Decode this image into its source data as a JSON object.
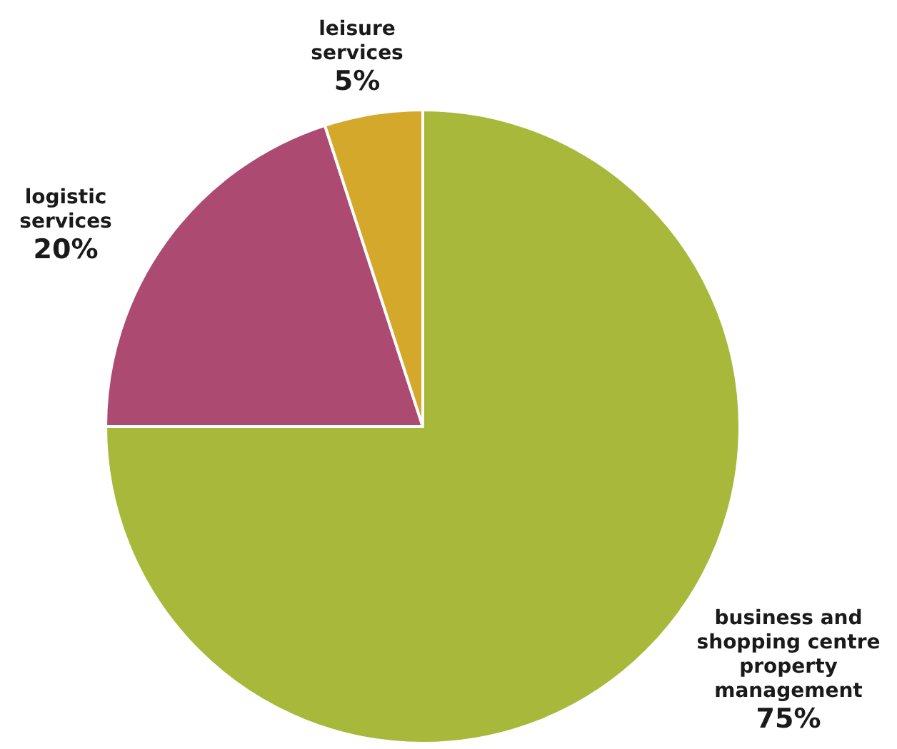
{
  "chart_data": {
    "type": "pie",
    "categories": [
      "business and shopping centre property management",
      "logistic services",
      "leisure services"
    ],
    "values": [
      75,
      20,
      5
    ],
    "value_labels": [
      "75%",
      "20%",
      "5%"
    ],
    "colors": [
      "#a8b83a",
      "#ad4a72",
      "#d4a82a"
    ],
    "legend": false
  }
}
